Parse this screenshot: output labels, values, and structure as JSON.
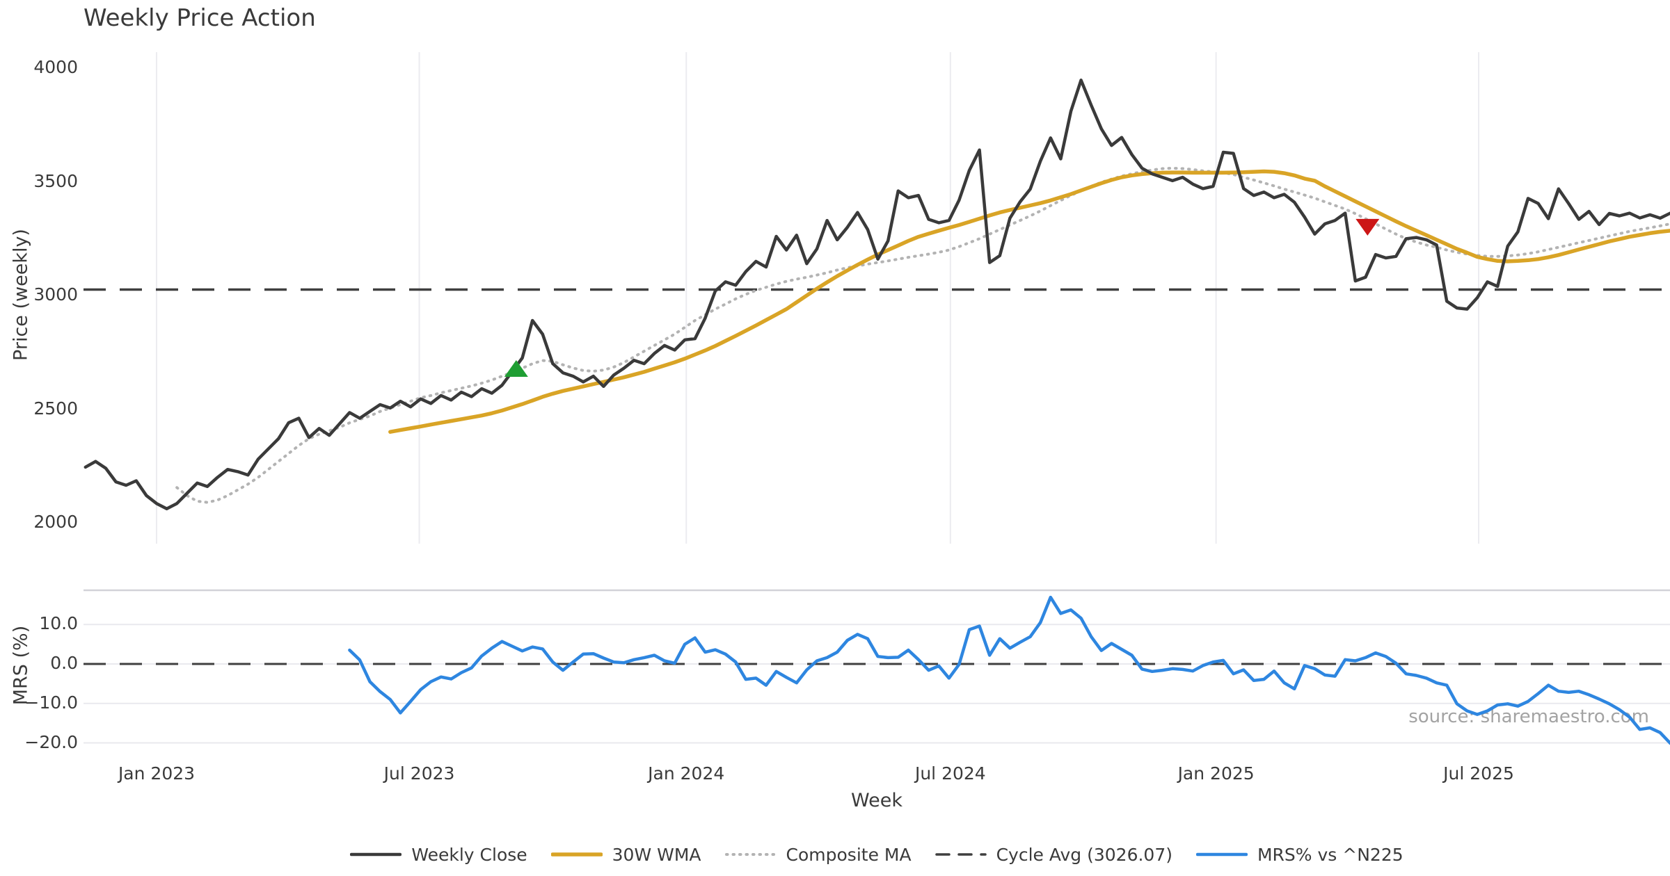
{
  "chart_data": {
    "type": "line",
    "title": "Weekly Price Action",
    "xlabel": "Week",
    "source": "source: sharemaestro.com",
    "x_unit": "week",
    "x_start_date": "2022-11-06",
    "x_step_days": 7,
    "x_axis": {
      "ticks": [
        {
          "label": "Jan 2023",
          "week": 8
        },
        {
          "label": "Jul 2023",
          "week": 33.86
        },
        {
          "label": "Jan 2024",
          "week": 60.14
        },
        {
          "label": "Jul 2024",
          "week": 86.14
        },
        {
          "label": "Jan 2025",
          "week": 112.29
        },
        {
          "label": "Jul 2025",
          "week": 138.14
        }
      ]
    },
    "panels": [
      {
        "name": "price",
        "ylabel": "Price (weekly)",
        "ylim": [
          1920,
          4060
        ],
        "grid": "vertical-only",
        "yticks": [
          {
            "label": "4000",
            "value": 4000
          },
          {
            "label": "3500",
            "value": 3500
          },
          {
            "label": "3000",
            "value": 3000
          },
          {
            "label": "2500",
            "value": 2500
          },
          {
            "label": "2000",
            "value": 2000
          }
        ],
        "hline": {
          "name": "Cycle Avg (3026.07)",
          "value": 3026.07,
          "style": "dashed",
          "color": "#3f3f3f"
        },
        "series": [
          {
            "name": "Weekly Close",
            "color": "#3a3a3a",
            "style": "solid",
            "width": 4.5,
            "start_week": 1,
            "values": [
              2245,
              2270,
              2240,
              2180,
              2165,
              2185,
              2120,
              2085,
              2062,
              2085,
              2130,
              2175,
              2160,
              2200,
              2235,
              2225,
              2210,
              2280,
              2325,
              2370,
              2440,
              2460,
              2375,
              2415,
              2385,
              2435,
              2485,
              2460,
              2490,
              2520,
              2505,
              2535,
              2510,
              2545,
              2525,
              2560,
              2540,
              2575,
              2555,
              2590,
              2570,
              2605,
              2665,
              2725,
              2890,
              2830,
              2700,
              2660,
              2645,
              2620,
              2645,
              2600,
              2650,
              2680,
              2715,
              2700,
              2745,
              2780,
              2760,
              2805,
              2810,
              2900,
              3020,
              3060,
              3045,
              3105,
              3150,
              3125,
              3260,
              3200,
              3265,
              3140,
              3205,
              3330,
              3245,
              3300,
              3365,
              3290,
              3160,
              3240,
              3460,
              3430,
              3440,
              3335,
              3320,
              3330,
              3420,
              3550,
              3640,
              3145,
              3175,
              3340,
              3412,
              3468,
              3591,
              3693,
              3601,
              3810,
              3947,
              3837,
              3733,
              3660,
              3695,
              3620,
              3560,
              3535,
              3520,
              3505,
              3520,
              3490,
              3470,
              3480,
              3630,
              3625,
              3470,
              3440,
              3455,
              3430,
              3445,
              3410,
              3345,
              3270,
              3315,
              3330,
              3362,
              3064,
              3080,
              3180,
              3165,
              3172,
              3250,
              3255,
              3245,
              3222,
              2975,
              2945,
              2940,
              2990,
              3060,
              3040,
              3217,
              3280,
              3427,
              3405,
              3338,
              3469,
              3404,
              3335,
              3370,
              3312,
              3361,
              3350,
              3362,
              3341,
              3355,
              3340,
              3362,
              3370
            ]
          },
          {
            "name": "30W WMA",
            "color": "#d9a426",
            "style": "solid",
            "width": 5.5,
            "start_week": 31,
            "values": [
              2400,
              2408,
              2416,
              2424,
              2432,
              2440,
              2448,
              2456,
              2464,
              2472,
              2482,
              2494,
              2508,
              2522,
              2538,
              2554,
              2568,
              2580,
              2590,
              2600,
              2610,
              2620,
              2630,
              2640,
              2652,
              2664,
              2678,
              2692,
              2706,
              2722,
              2740,
              2758,
              2778,
              2800,
              2822,
              2845,
              2868,
              2892,
              2916,
              2940,
              2970,
              3000,
              3030,
              3058,
              3085,
              3110,
              3135,
              3158,
              3180,
              3200,
              3220,
              3240,
              3258,
              3272,
              3285,
              3298,
              3310,
              3324,
              3338,
              3352,
              3365,
              3376,
              3386,
              3396,
              3406,
              3418,
              3432,
              3446,
              3462,
              3478,
              3494,
              3508,
              3520,
              3528,
              3534,
              3538,
              3540,
              3541,
              3541,
              3540,
              3540,
              3540,
              3540,
              3541,
              3542,
              3544,
              3546,
              3544,
              3538,
              3528,
              3514,
              3505,
              3480,
              3458,
              3436,
              3414,
              3392,
              3370,
              3348,
              3326,
              3305,
              3285,
              3265,
              3245,
              3225,
              3205,
              3188,
              3170,
              3160,
              3152,
              3150,
              3152,
              3155,
              3160,
              3168,
              3178,
              3190,
              3202,
              3214,
              3226,
              3238,
              3248,
              3258,
              3266,
              3274,
              3280,
              3285,
              3290
            ]
          },
          {
            "name": "Composite MA",
            "color": "#b3b3b3",
            "style": "dotted",
            "width": 4,
            "start_week": 10,
            "values": [
              2155,
              2120,
              2095,
              2090,
              2100,
              2120,
              2145,
              2170,
              2200,
              2235,
              2270,
              2305,
              2340,
              2370,
              2390,
              2405,
              2420,
              2440,
              2455,
              2470,
              2490,
              2505,
              2520,
              2535,
              2550,
              2560,
              2572,
              2582,
              2592,
              2602,
              2614,
              2628,
              2645,
              2662,
              2680,
              2700,
              2714,
              2710,
              2695,
              2681,
              2670,
              2667,
              2672,
              2685,
              2705,
              2730,
              2755,
              2780,
              2805,
              2830,
              2860,
              2890,
              2915,
              2940,
              2962,
              2985,
              3005,
              3022,
              3036,
              3050,
              3062,
              3072,
              3080,
              3090,
              3100,
              3112,
              3122,
              3130,
              3138,
              3145,
              3152,
              3160,
              3168,
              3175,
              3182,
              3190,
              3200,
              3215,
              3232,
              3250,
              3270,
              3290,
              3310,
              3330,
              3350,
              3372,
              3395,
              3418,
              3440,
              3460,
              3480,
              3498,
              3512,
              3525,
              3535,
              3545,
              3552,
              3558,
              3560,
              3558,
              3554,
              3548,
              3544,
              3540,
              3532,
              3520,
              3508,
              3495,
              3482,
              3468,
              3455,
              3442,
              3428,
              3412,
              3396,
              3380,
              3360,
              3338,
              3315,
              3292,
              3270,
              3250,
              3235,
              3222,
              3212,
              3200,
              3190,
              3182,
              3176,
              3172,
              3172,
              3174,
              3178,
              3184,
              3192,
              3202,
              3212,
              3222,
              3232,
              3242,
              3252,
              3262,
              3272,
              3282,
              3290,
              3298,
              3306,
              3315,
              3324
            ]
          }
        ],
        "markers": [
          {
            "name": "buy-signal",
            "shape": "triangle-up",
            "color": "#1f9e33",
            "week": 43.4,
            "value": 2679
          },
          {
            "name": "sell-signal",
            "shape": "triangle-down",
            "color": "#cc1616",
            "week": 127.2,
            "value": 3300
          }
        ]
      },
      {
        "name": "mrs",
        "ylabel": "MRS (%)",
        "ylim": [
          -23.5,
          18.5
        ],
        "grid": "horizontal-only",
        "yticks": [
          {
            "label": "10.0",
            "value": 10
          },
          {
            "label": "0.0",
            "value": 0
          },
          {
            "label": "−10.0",
            "value": -10
          },
          {
            "label": "−20.0",
            "value": -20
          }
        ],
        "hline": {
          "name": "zero-line",
          "value": 0,
          "style": "dashed",
          "color": "#3f3f3f"
        },
        "series": [
          {
            "name": "MRS% vs ^N225",
            "color": "#2e86e0",
            "style": "solid",
            "width": 4.5,
            "start_week": 27,
            "values": [
              3.5,
              1.0,
              -4.5,
              -7.0,
              -9.0,
              -12.4,
              -9.5,
              -6.5,
              -4.5,
              -3.3,
              -3.8,
              -2.2,
              -1.0,
              2.0,
              4.0,
              5.7,
              4.5,
              3.3,
              4.3,
              3.8,
              0.5,
              -1.6,
              0.5,
              2.5,
              2.6,
              1.5,
              0.5,
              0.3,
              1.1,
              1.6,
              2.2,
              0.8,
              0.2,
              5.0,
              6.6,
              3.0,
              3.6,
              2.5,
              0.5,
              -3.9,
              -3.6,
              -5.4,
              -1.9,
              -3.4,
              -4.8,
              -1.5,
              0.8,
              1.6,
              3.0,
              6.0,
              7.5,
              6.4,
              1.9,
              1.6,
              1.7,
              3.5,
              1.1,
              -1.6,
              -0.5,
              -3.6,
              -0.1,
              8.7,
              9.6,
              2.2,
              6.4,
              4.0,
              5.5,
              6.9,
              10.5,
              16.9,
              12.8,
              13.7,
              11.6,
              6.9,
              3.4,
              5.2,
              3.7,
              2.2,
              -1.3,
              -1.9,
              -1.6,
              -1.2,
              -1.4,
              -1.8,
              -0.4,
              0.5,
              0.9,
              -2.5,
              -1.5,
              -4.2,
              -3.9,
              -1.8,
              -4.8,
              -6.3,
              -0.4,
              -1.2,
              -2.8,
              -3.1,
              1.1,
              0.8,
              1.6,
              2.8,
              1.9,
              0.2,
              -2.5,
              -2.9,
              -3.6,
              -4.8,
              -5.4,
              -10.1,
              -11.9,
              -12.8,
              -11.9,
              -10.4,
              -10.1,
              -10.7,
              -9.5,
              -7.5,
              -5.4,
              -6.9,
              -7.2,
              -6.9,
              -7.8,
              -8.9,
              -10.1,
              -11.6,
              -13.5,
              -16.6,
              -16.2,
              -17.4,
              -20.1,
              -17.6,
              -21.0
            ]
          }
        ]
      }
    ],
    "legend": [
      {
        "label": "Weekly Close",
        "swatch": "solid",
        "color": "#3a3a3a",
        "width": 4.5
      },
      {
        "label": "30W WMA",
        "swatch": "solid",
        "color": "#d9a426",
        "width": 5.5
      },
      {
        "label": "Composite MA",
        "swatch": "dotted",
        "color": "#b3b3b3",
        "width": 4
      },
      {
        "label": "Cycle Avg (3026.07)",
        "swatch": "dashed",
        "color": "#3f3f3f",
        "width": 3.5
      },
      {
        "label": "MRS% vs ^N225",
        "swatch": "solid",
        "color": "#2e86e0",
        "width": 4.5
      }
    ],
    "style": {
      "vgrid_color": "#ececf0",
      "hgrid_color": "#e9e9ee",
      "panel_spine_color": "#d2d2d8",
      "text_color": "#3a3a3a",
      "source_color": "#a3a3a3"
    }
  }
}
